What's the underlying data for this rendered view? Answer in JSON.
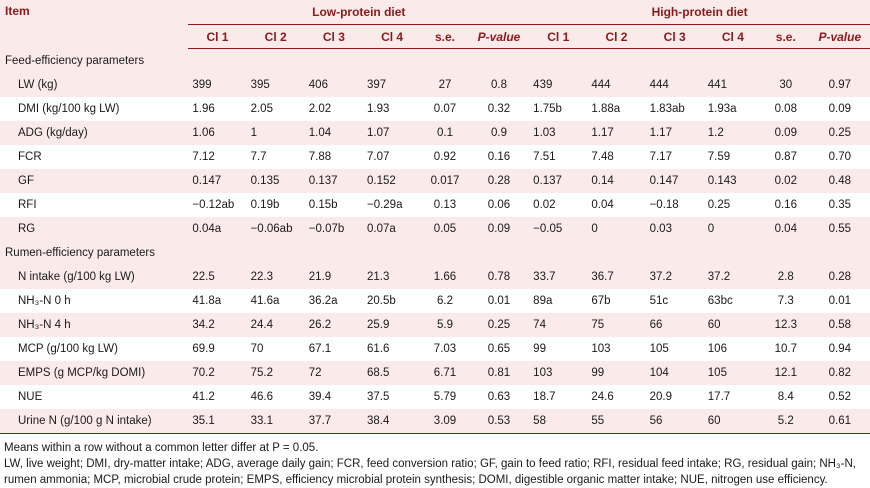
{
  "header": {
    "item": "Item",
    "low_group": "Low-protein diet",
    "high_group": "High-protein diet",
    "low_cols": [
      "Cl 1",
      "Cl 2",
      "Cl 3",
      "Cl 4",
      "s.e.",
      "P-value"
    ],
    "high_cols": [
      "Cl 1",
      "Cl 2",
      "Cl 3",
      "Cl 4",
      "s.e.",
      "P-value"
    ]
  },
  "rows": [
    {
      "section": "Feed-efficiency parameters"
    },
    {
      "label": "LW (kg)",
      "low": [
        "399",
        "395",
        "406",
        "397",
        "27",
        "0.8"
      ],
      "high": [
        "439",
        "444",
        "444",
        "441",
        "30",
        "0.97"
      ]
    },
    {
      "label": "DMI (kg/100 kg LW)",
      "low": [
        "1.96",
        "2.05",
        "2.02",
        "1.93",
        "0.07",
        "0.32"
      ],
      "high": [
        "1.75b",
        "1.88a",
        "1.83ab",
        "1.93a",
        "0.08",
        "0.09"
      ]
    },
    {
      "label": "ADG (kg/day)",
      "low": [
        "1.06",
        "1",
        "1.04",
        "1.07",
        "0.1",
        "0.9"
      ],
      "high": [
        "1.03",
        "1.17",
        "1.17",
        "1.2",
        "0.09",
        "0.25"
      ]
    },
    {
      "label": "FCR",
      "low": [
        "7.12",
        "7.7",
        "7.88",
        "7.07",
        "0.92",
        "0.16"
      ],
      "high": [
        "7.51",
        "7.48",
        "7.17",
        "7.59",
        "0.87",
        "0.70"
      ]
    },
    {
      "label": "GF",
      "low": [
        "0.147",
        "0.135",
        "0.137",
        "0.152",
        "0.017",
        "0.28"
      ],
      "high": [
        "0.137",
        "0.14",
        "0.147",
        "0.143",
        "0.02",
        "0.48"
      ]
    },
    {
      "label": "RFI",
      "low": [
        "−0.12ab",
        "0.19b",
        "0.15b",
        "−0.29a",
        "0.13",
        "0.06"
      ],
      "high": [
        "0.02",
        "0.04",
        "−0.18",
        "0.25",
        "0.16",
        "0.35"
      ]
    },
    {
      "label": "RG",
      "low": [
        "0.04a",
        "−0.06ab",
        "−0.07b",
        "0.07a",
        "0.05",
        "0.09"
      ],
      "high": [
        "−0.05",
        "0",
        "0.03",
        "0",
        "0.04",
        "0.55"
      ]
    },
    {
      "section": "Rumen-efficiency parameters"
    },
    {
      "label": "N intake (g/100 kg LW)",
      "low": [
        "22.5",
        "22.3",
        "21.9",
        "21.3",
        "1.66",
        "0.78"
      ],
      "high": [
        "33.7",
        "36.7",
        "37.2",
        "37.2",
        "2.8",
        "0.28"
      ]
    },
    {
      "label": "NH₃-N 0 h",
      "low": [
        "41.8a",
        "41.6a",
        "36.2a",
        "20.5b",
        "6.2",
        "0.01"
      ],
      "high": [
        "89a",
        "67b",
        "51c",
        "63bc",
        "7.3",
        "0.01"
      ]
    },
    {
      "label": "NH₃-N 4 h",
      "low": [
        "34.2",
        "24.4",
        "26.2",
        "25.9",
        "5.9",
        "0.25"
      ],
      "high": [
        "74",
        "75",
        "66",
        "60",
        "12.3",
        "0.58"
      ]
    },
    {
      "label": "MCP (g/100 kg LW)",
      "low": [
        "69.9",
        "70",
        "67.1",
        "61.6",
        "7.03",
        "0.65"
      ],
      "high": [
        "99",
        "103",
        "105",
        "106",
        "10.7",
        "0.94"
      ]
    },
    {
      "label": "EMPS (g MCP/kg DOMI)",
      "low": [
        "70.2",
        "75.2",
        "72",
        "68.5",
        "6.71",
        "0.81"
      ],
      "high": [
        "103",
        "99",
        "104",
        "105",
        "12.1",
        "0.82"
      ]
    },
    {
      "label": "NUE",
      "low": [
        "41.2",
        "46.6",
        "39.4",
        "37.5",
        "5.79",
        "0.63"
      ],
      "high": [
        "18.7",
        "24.6",
        "20.9",
        "17.7",
        "8.4",
        "0.52"
      ]
    },
    {
      "label": "Urine N (g/100 g N intake)",
      "low": [
        "35.1",
        "33.1",
        "37.7",
        "38.4",
        "3.09",
        "0.53"
      ],
      "high": [
        "58",
        "55",
        "56",
        "60",
        "5.2",
        "0.61"
      ]
    }
  ],
  "notes": {
    "line1": "Means within a row without a common letter differ at P = 0.05.",
    "line2": "LW, live weight; DMI, dry-matter intake; ADG, average daily gain; FCR, feed conversion ratio; GF, gain to feed ratio; RFI, residual feed intake; RG, residual gain; NH₃-N,",
    "line3": "rumen ammonia; MCP, microbial crude protein; EMPS, efficiency microbial protein synthesis; DOMI, digestible organic matter intake; NUE, nitrogen use efficiency."
  }
}
